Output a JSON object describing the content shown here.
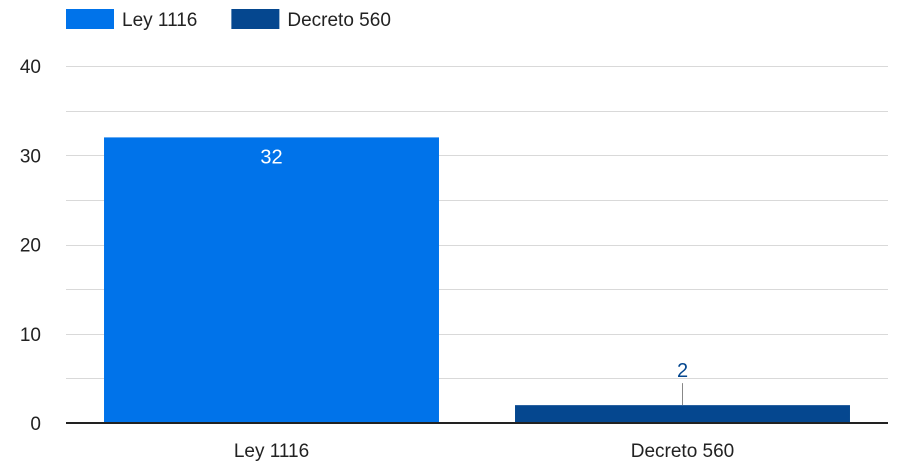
{
  "chart_data": {
    "type": "bar",
    "categories": [
      "Ley 1116",
      "Decreto 560"
    ],
    "series": [
      {
        "name": "Ley 1116",
        "values": [
          32,
          null
        ],
        "color": "#0073ea"
      },
      {
        "name": "Decreto 560",
        "values": [
          null,
          2
        ],
        "color": "#05478f"
      }
    ],
    "data_labels": [
      "32",
      "2"
    ],
    "y_ticks": [
      0,
      10,
      20,
      30,
      40
    ],
    "y_tick_labels": [
      "0",
      "10",
      "20",
      "30",
      "40"
    ],
    "ylim": [
      0,
      40
    ],
    "title": "",
    "xlabel": "",
    "ylabel": "",
    "grid": true,
    "legend_position": "top-left"
  }
}
